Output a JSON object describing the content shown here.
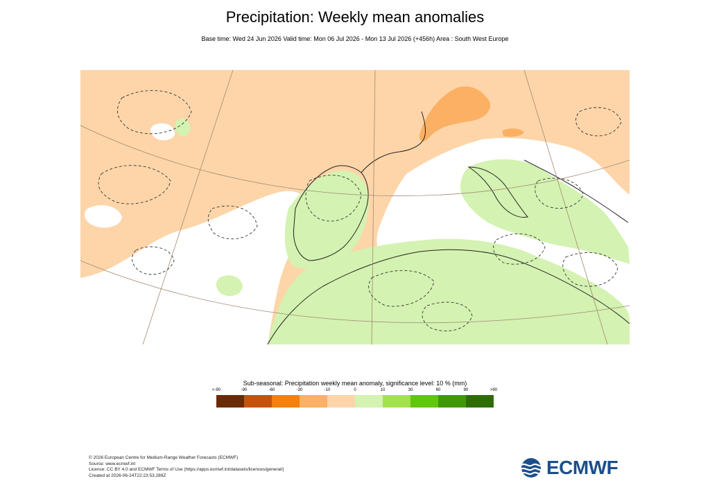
{
  "title": "Precipitation: Weekly mean anomalies",
  "subtitle": "Base time: Wed 24 Jun 2026 Valid time: Mon 06 Jul 2026 - Mon 13 Jul 2026 (+456h) Area : South West Europe",
  "legend": {
    "title": "Sub-seasonal: Precipitation weekly mean anomaly, significance level: 10 % (mm)",
    "ticks": [
      "<-90",
      "-90",
      "-60",
      "-30",
      "-10",
      "0",
      "10",
      "30",
      "60",
      "90",
      ">90"
    ],
    "colors": [
      "#6b2a06",
      "#c4540c",
      "#f4800e",
      "#fbb063",
      "#fdd5a9",
      "#d4f2b1",
      "#a3e24e",
      "#5ec70e",
      "#3f9905",
      "#2d6d04"
    ]
  },
  "map": {
    "colors": {
      "dry_light": "#fdd5a9",
      "dry_medium": "#fbb063",
      "wet_light": "#d4f2b1",
      "neutral": "#ffffff"
    }
  },
  "footer": {
    "line1": "© 2026 European Centre for Medium-Range Weather Forecasts (ECMWF)",
    "line2": "Source: www.ecmwf.int",
    "line3": "Licence: CC BY 4.0 and ECMWF Terms of Use (https://apps.ecmwf.int/datasets/licences/general/)",
    "line4": "Created at 2026-06-24T22:23:53.289Z"
  },
  "logo": {
    "text": "ECMWF",
    "color": "#1b4f8c"
  }
}
